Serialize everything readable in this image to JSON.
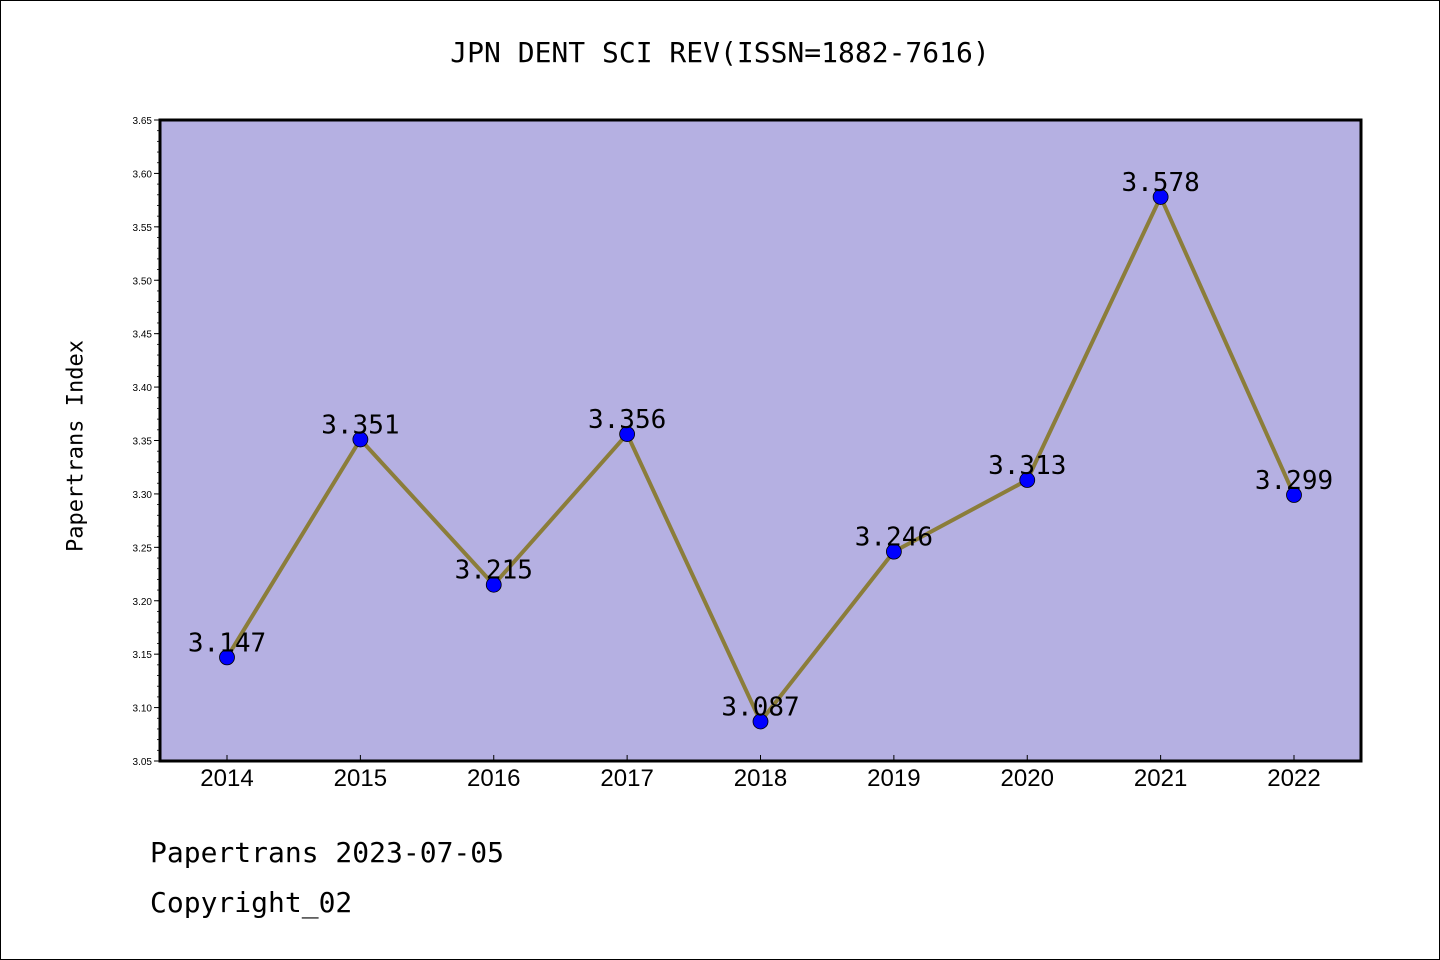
{
  "chart_data": {
    "type": "line",
    "title": "JPN DENT SCI REV(ISSN=1882-7616)",
    "ylabel": "Papertrans Index",
    "xlabel": "",
    "categories": [
      "2014",
      "2015",
      "2016",
      "2017",
      "2018",
      "2019",
      "2020",
      "2021",
      "2022"
    ],
    "values": [
      3.147,
      3.351,
      3.215,
      3.356,
      3.087,
      3.246,
      3.313,
      3.578,
      3.299
    ],
    "data_labels": [
      "3.147",
      "3.351",
      "3.215",
      "3.356",
      "3.087",
      "3.246",
      "3.313",
      "3.578",
      "3.299"
    ],
    "ylim": [
      3.05,
      3.65
    ],
    "yticks": [
      "3.05",
      "3.10",
      "3.15",
      "3.20",
      "3.25",
      "3.30",
      "3.35",
      "3.40",
      "3.45",
      "3.50",
      "3.55",
      "3.60",
      "3.65"
    ],
    "grid": false,
    "colors": {
      "plot_background": "#b5b0e2",
      "line": "#8b7d3a",
      "marker": "#0000ff"
    }
  },
  "footer": {
    "source_date": "Papertrans 2023-07-05",
    "copyright": "Copyright_02"
  }
}
